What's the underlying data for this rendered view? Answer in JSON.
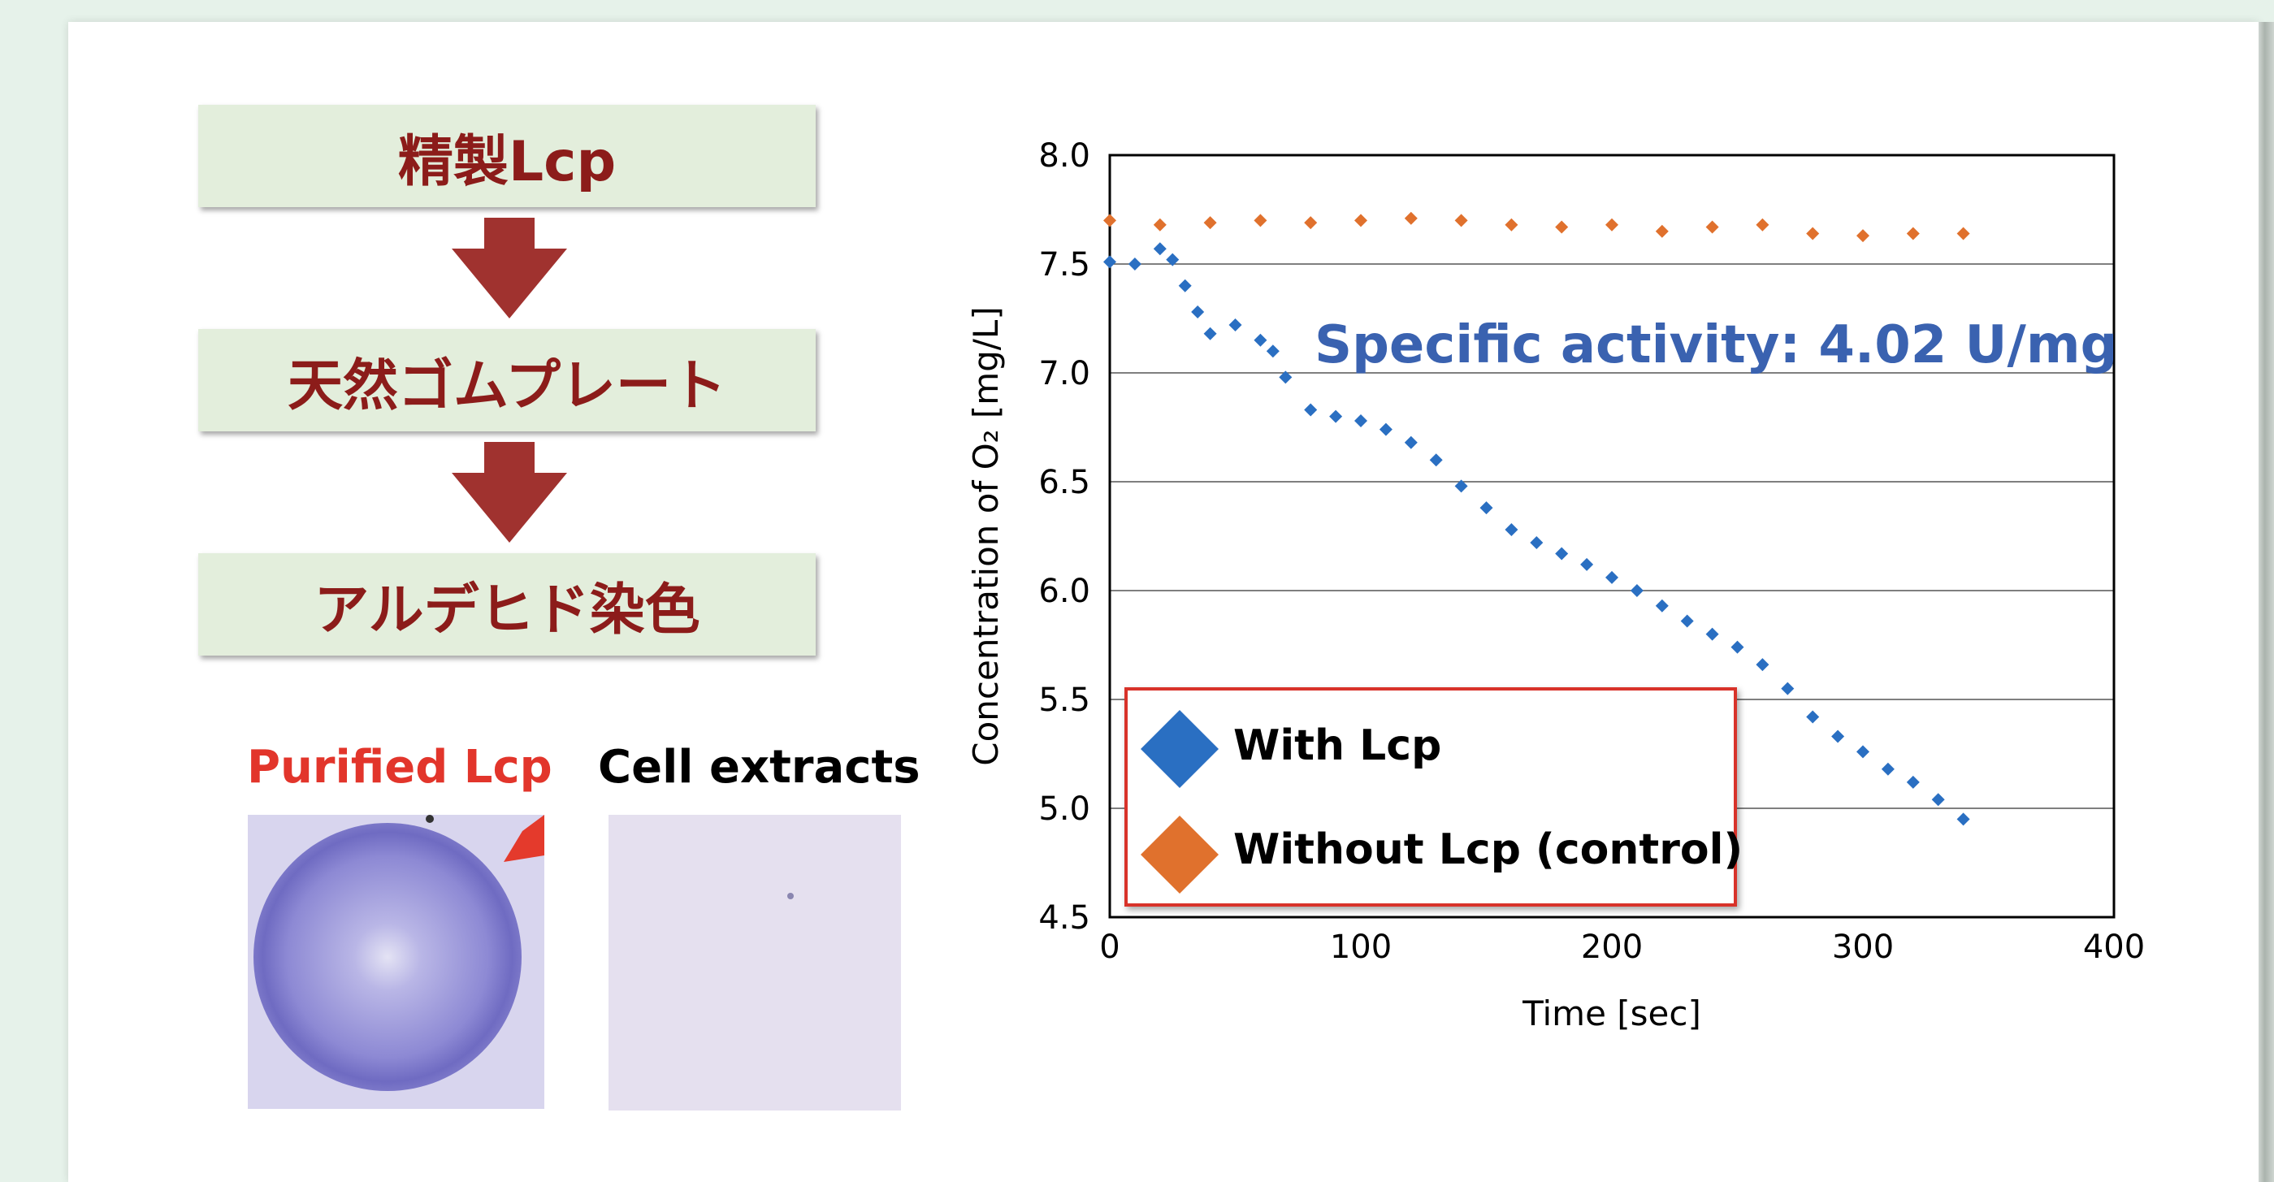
{
  "flow": {
    "steps": [
      "精製Lcp",
      "天然ゴムプレート",
      "アルデヒド染色"
    ]
  },
  "photos": {
    "purified_label": "Purified Lcp",
    "cell_label": "Cell extracts",
    "purified_label_color": "#e2352b"
  },
  "chart_data": {
    "type": "scatter",
    "xlabel": "Time [sec]",
    "ylabel": "Concentration of O₂ [mg/L]",
    "xlim": [
      0,
      400
    ],
    "ylim": [
      4.5,
      8.0
    ],
    "xticks": [
      "0",
      "100",
      "200",
      "300",
      "400"
    ],
    "yticks": [
      "4.5",
      "5.0",
      "5.5",
      "6.0",
      "6.5",
      "7.0",
      "7.5",
      "8.0"
    ],
    "grid": "horizontal",
    "legend_position": "bottom-left",
    "annotation": "Specific activity: 4.02 U/mg",
    "annotation_color": "#3a62b0",
    "series": [
      {
        "name": "With Lcp",
        "color": "#2a6fc2",
        "points": [
          [
            0,
            7.51
          ],
          [
            10,
            7.5
          ],
          [
            20,
            7.57
          ],
          [
            25,
            7.52
          ],
          [
            30,
            7.4
          ],
          [
            35,
            7.28
          ],
          [
            40,
            7.18
          ],
          [
            50,
            7.22
          ],
          [
            60,
            7.15
          ],
          [
            65,
            7.1
          ],
          [
            70,
            6.98
          ],
          [
            80,
            6.83
          ],
          [
            90,
            6.8
          ],
          [
            100,
            6.78
          ],
          [
            110,
            6.74
          ],
          [
            120,
            6.68
          ],
          [
            130,
            6.6
          ],
          [
            140,
            6.48
          ],
          [
            150,
            6.38
          ],
          [
            160,
            6.28
          ],
          [
            170,
            6.22
          ],
          [
            180,
            6.17
          ],
          [
            190,
            6.12
          ],
          [
            200,
            6.06
          ],
          [
            210,
            6.0
          ],
          [
            220,
            5.93
          ],
          [
            230,
            5.86
          ],
          [
            240,
            5.8
          ],
          [
            250,
            5.74
          ],
          [
            260,
            5.66
          ],
          [
            270,
            5.55
          ],
          [
            280,
            5.42
          ],
          [
            290,
            5.33
          ],
          [
            300,
            5.26
          ],
          [
            310,
            5.18
          ],
          [
            320,
            5.12
          ],
          [
            330,
            5.04
          ],
          [
            340,
            4.95
          ]
        ]
      },
      {
        "name": "Without Lcp (control)",
        "color": "#e0712d",
        "points": [
          [
            0,
            7.7
          ],
          [
            20,
            7.68
          ],
          [
            40,
            7.69
          ],
          [
            60,
            7.7
          ],
          [
            80,
            7.69
          ],
          [
            100,
            7.7
          ],
          [
            120,
            7.71
          ],
          [
            140,
            7.7
          ],
          [
            160,
            7.68
          ],
          [
            180,
            7.67
          ],
          [
            200,
            7.68
          ],
          [
            220,
            7.65
          ],
          [
            240,
            7.67
          ],
          [
            260,
            7.68
          ],
          [
            280,
            7.64
          ],
          [
            300,
            7.63
          ],
          [
            320,
            7.64
          ],
          [
            340,
            7.64
          ]
        ]
      }
    ]
  }
}
